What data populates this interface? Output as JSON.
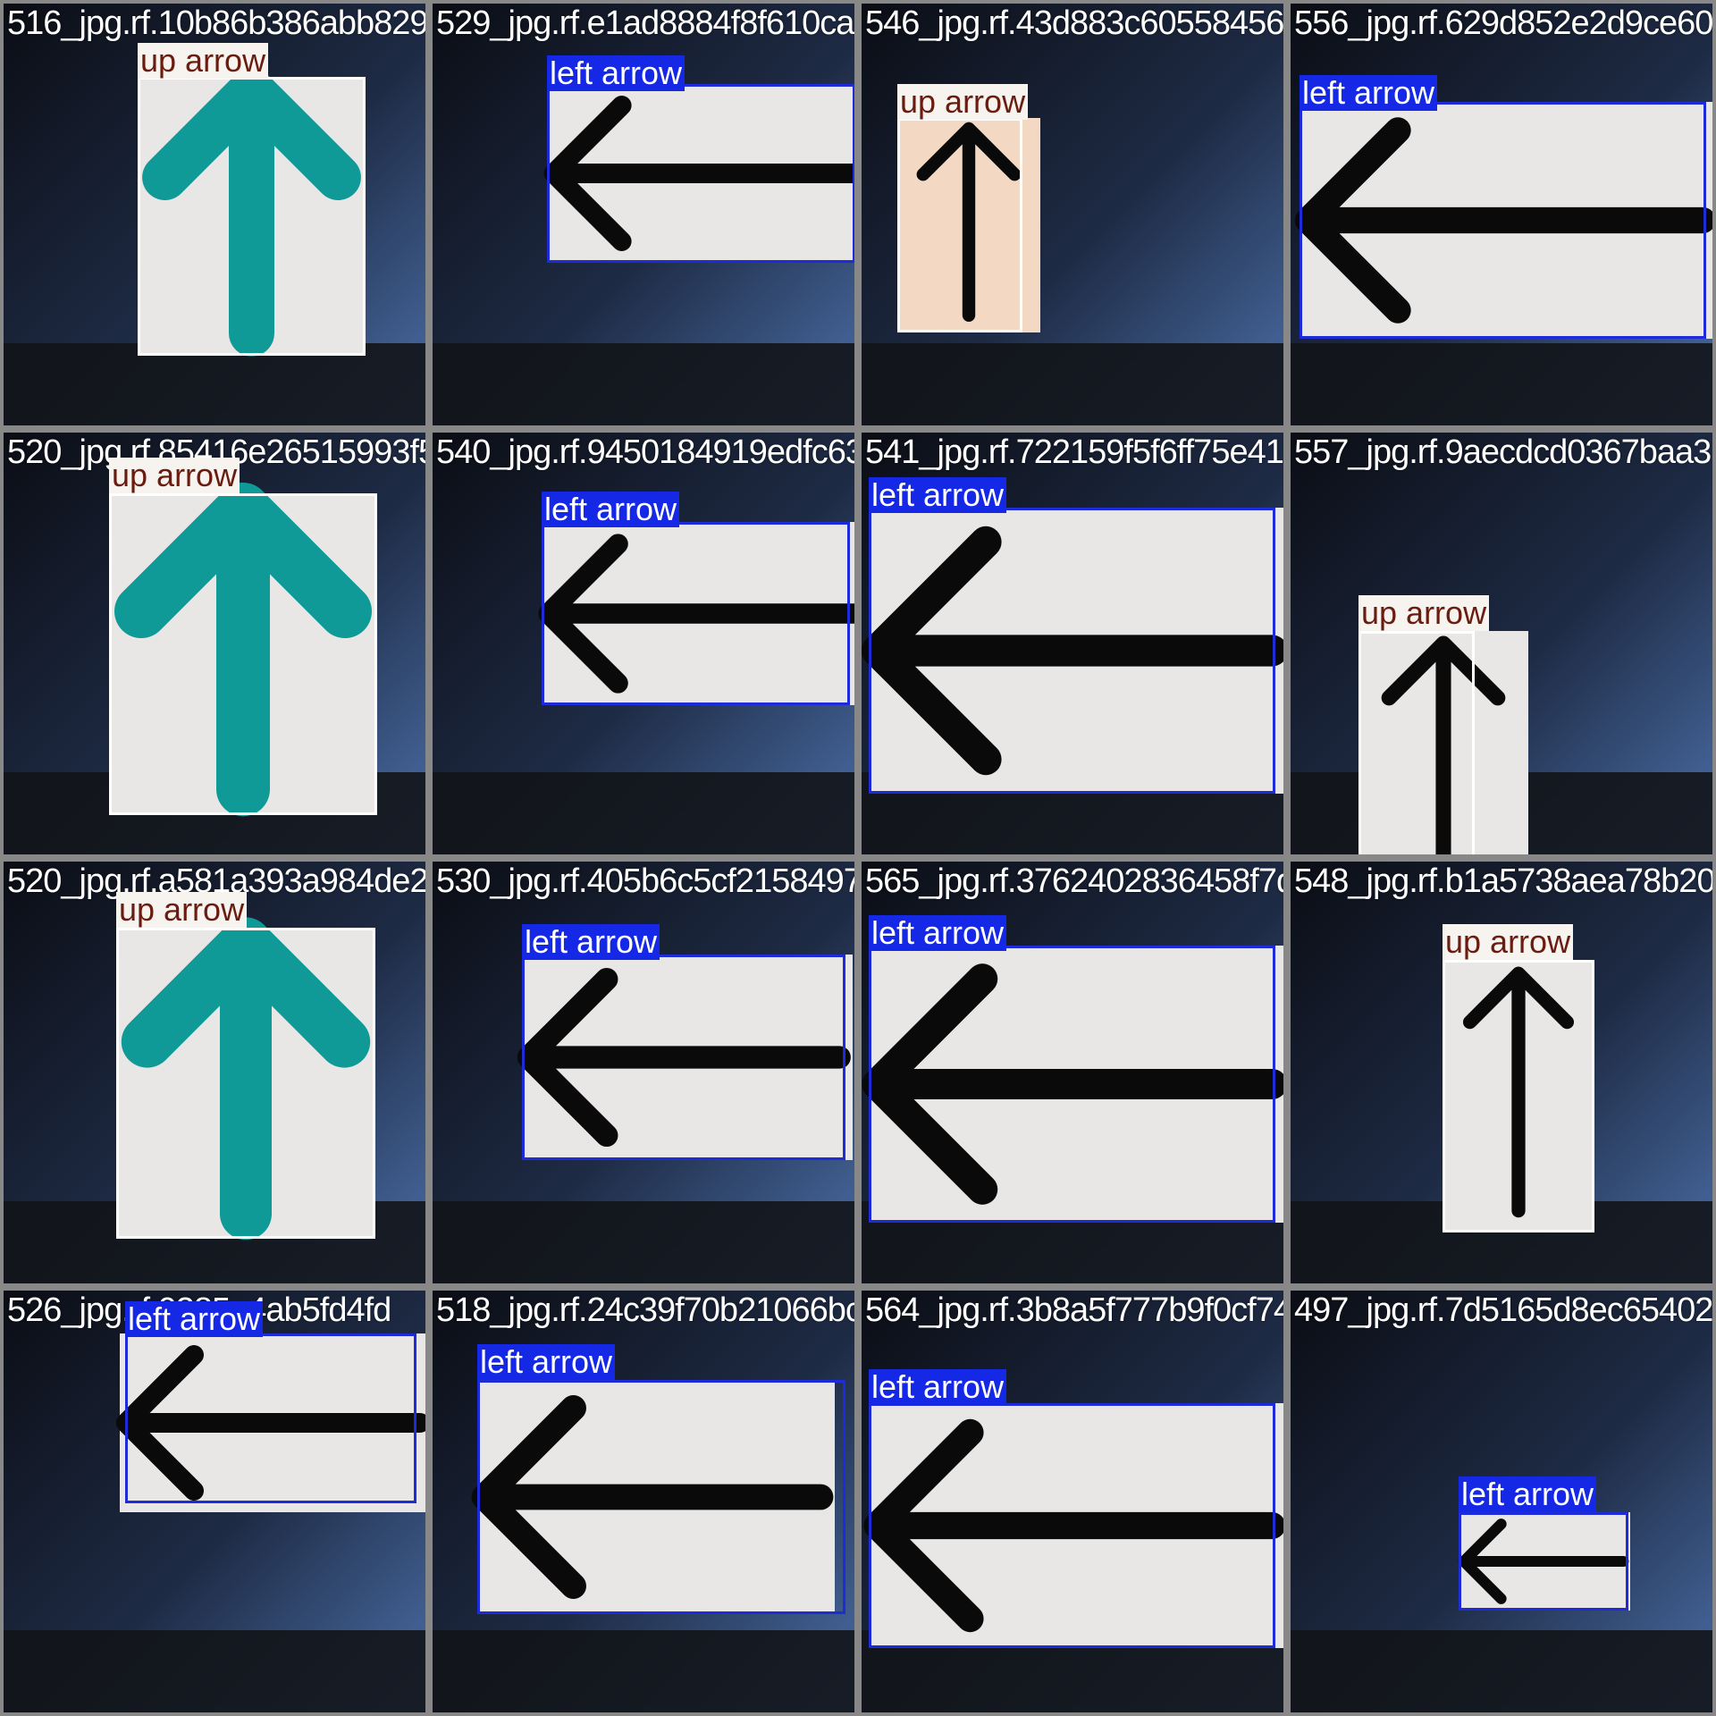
{
  "colors": {
    "up_label_bg": "#f7f3ee",
    "up_label_text": "#6b1c10",
    "left_label_bg": "#1428e6",
    "left_label_text": "#ffffff",
    "up_box": "#ffffff",
    "left_box": "#1d2bd8",
    "tile_border": "#888888"
  },
  "tiles": [
    {
      "filename": "516_jpg.rf.10b86b386abb82929",
      "label": "up arrow",
      "arrow": "up",
      "arrow_color": "teal"
    },
    {
      "filename": "529_jpg.rf.e1ad8884f8f610ca6f",
      "label": "left arrow",
      "arrow": "left",
      "arrow_color": "black"
    },
    {
      "filename": "546_jpg.rf.43d883c605584565",
      "label": "up arrow",
      "arrow": "up",
      "arrow_color": "black"
    },
    {
      "filename": "556_jpg.rf.629d852e2d9ce60f",
      "label": "left arrow",
      "arrow": "left",
      "arrow_color": "black"
    },
    {
      "filename": "520_jpg.rf.85416e26515993f5",
      "label": "up arrow",
      "arrow": "up",
      "arrow_color": "teal"
    },
    {
      "filename": "540_jpg.rf.9450184919edfc63a",
      "label": "left arrow",
      "arrow": "left",
      "arrow_color": "black"
    },
    {
      "filename": "541_jpg.rf.722159f5f6ff75e419",
      "label": "left arrow",
      "arrow": "left",
      "arrow_color": "black"
    },
    {
      "filename": "557_jpg.rf.9aecdcd0367baa3",
      "label": "up arrow",
      "arrow": "up",
      "arrow_color": "black"
    },
    {
      "filename": "520_jpg.rf.a581a393a984de25",
      "label": "up arrow",
      "arrow": "up",
      "arrow_color": "teal"
    },
    {
      "filename": "530_jpg.rf.405b6c5cf21584975",
      "label": "left arrow",
      "arrow": "left",
      "arrow_color": "black"
    },
    {
      "filename": "565_jpg.rf.3762402836458f7d",
      "label": "left arrow",
      "arrow": "left",
      "arrow_color": "black"
    },
    {
      "filename": "548_jpg.rf.b1a5738aea78b20",
      "label": "up arrow",
      "arrow": "up",
      "arrow_color": "black"
    },
    {
      "filename": "526_jpg.rf.0385a4ab5fd4fd",
      "label": "left arrow",
      "arrow": "left",
      "arrow_color": "black"
    },
    {
      "filename": "518_jpg.rf.24c39f70b21066bc",
      "label": "left arrow",
      "arrow": "left",
      "arrow_color": "black"
    },
    {
      "filename": "564_jpg.rf.3b8a5f777b9f0cf74",
      "label": "left arrow",
      "arrow": "left",
      "arrow_color": "black"
    },
    {
      "filename": "497_jpg.rf.7d5165d8ec65402",
      "label": "left arrow",
      "arrow": "left",
      "arrow_color": "black"
    }
  ]
}
